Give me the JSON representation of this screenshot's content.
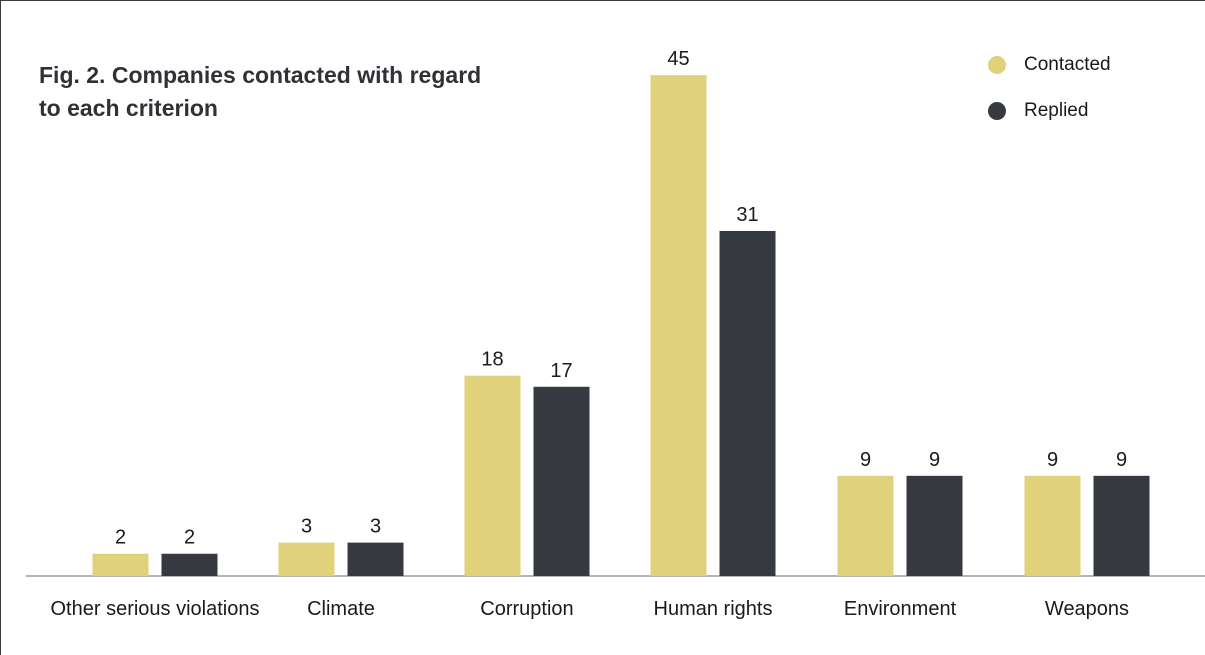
{
  "title": "Fig. 2. Companies contacted with regard to each criterion",
  "legend": [
    {
      "label": "Contacted",
      "color": "#dfd27a"
    },
    {
      "label": "Replied",
      "color": "#363a40"
    }
  ],
  "chart_data": {
    "type": "bar",
    "title": "Fig. 2. Companies contacted with regard to each criterion",
    "categories": [
      "Other serious violations",
      "Climate",
      "Corruption",
      "Human rights",
      "Environment",
      "Weapons"
    ],
    "series": [
      {
        "name": "Contacted",
        "color": "#dfd27a",
        "values": [
          2,
          3,
          18,
          45,
          9,
          9
        ]
      },
      {
        "name": "Replied",
        "color": "#363a40",
        "values": [
          2,
          3,
          17,
          31,
          9,
          9
        ]
      }
    ],
    "ylim": [
      0,
      45
    ],
    "grid": false,
    "legend_position": "top-right"
  }
}
